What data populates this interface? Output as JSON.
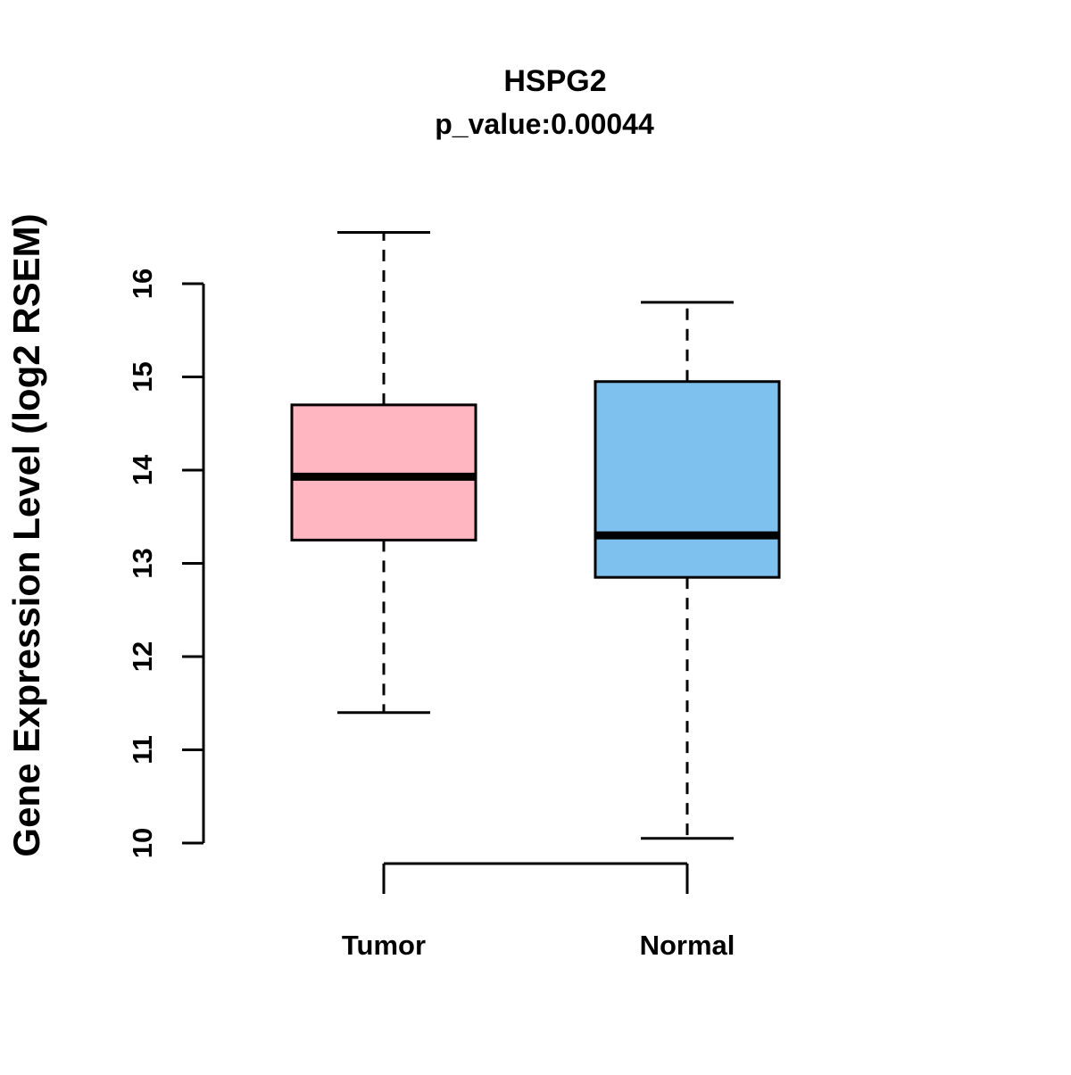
{
  "chart_data": {
    "type": "boxplot",
    "title": "HSPG2",
    "subtitle": "p_value:0.00044",
    "ylabel": "Gene Expression Level (log2 RSEM)",
    "xlabel": "",
    "ylim": [
      10,
      16.6
    ],
    "yticks": [
      10,
      11,
      12,
      13,
      14,
      15,
      16
    ],
    "grid": false,
    "legend": "none",
    "groups": [
      {
        "label": "Tumor",
        "color": "#FFB6C1",
        "whisker_low": 11.4,
        "q1": 13.25,
        "median": 13.93,
        "q3": 14.7,
        "whisker_high": 16.55
      },
      {
        "label": "Normal",
        "color": "#7EC0EE",
        "whisker_low": 10.05,
        "q1": 12.85,
        "median": 13.3,
        "q3": 14.95,
        "whisker_high": 15.8
      }
    ],
    "axis_color": "#000000"
  }
}
